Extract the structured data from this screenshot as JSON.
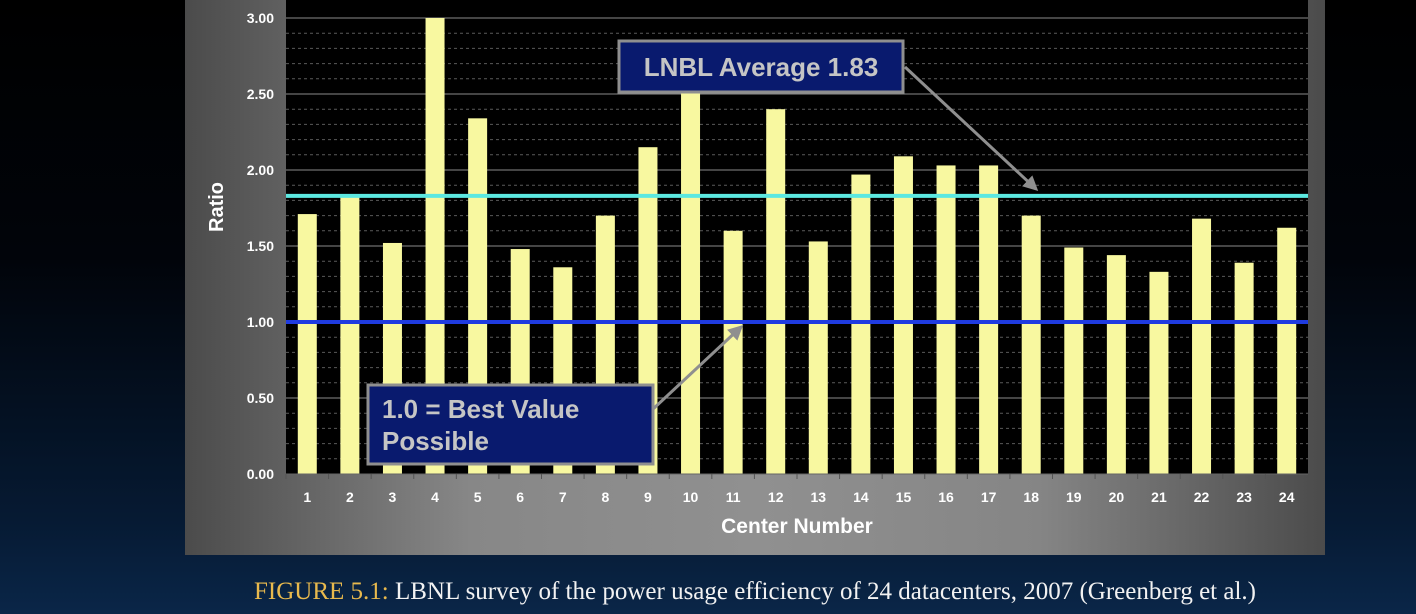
{
  "chart_data": {
    "type": "bar",
    "title": "",
    "xlabel": "Center Number",
    "ylabel": "Ratio",
    "ylim": [
      0,
      3
    ],
    "yticks": [
      "0.00",
      "0.50",
      "1.00",
      "1.50",
      "2.00",
      "2.50",
      "3.00"
    ],
    "categories": [
      "1",
      "2",
      "3",
      "4",
      "5",
      "6",
      "7",
      "8",
      "9",
      "10",
      "11",
      "12",
      "13",
      "14",
      "15",
      "16",
      "17",
      "18",
      "19",
      "20",
      "21",
      "22",
      "23",
      "24"
    ],
    "values": [
      1.71,
      1.84,
      1.52,
      3.0,
      2.34,
      1.48,
      1.36,
      1.7,
      2.15,
      2.55,
      1.6,
      2.4,
      1.53,
      1.97,
      2.09,
      2.03,
      2.03,
      1.7,
      1.49,
      1.44,
      1.33,
      1.68,
      1.39,
      1.62
    ],
    "grid": true,
    "bar_color": "#f8f8a0",
    "reference_lines": [
      {
        "value": 1.83,
        "color": "#5ce8e0"
      },
      {
        "value": 1.0,
        "color": "#1f3be0"
      }
    ],
    "annotations": [
      {
        "text": "LNBL Average 1.83",
        "points_to": {
          "category": "18",
          "value": 1.83
        }
      },
      {
        "text": "1.0 = Best Value Possible",
        "lines": [
          "1.0 = Best Value",
          "Possible"
        ],
        "points_to": {
          "category": "11",
          "value": 1.0
        }
      }
    ]
  },
  "caption": {
    "label": "FIGURE 5.1:",
    "text": " LBNL survey of the power usage efficiency of 24 datacenters, 2007 (Greenberg et al.)"
  }
}
